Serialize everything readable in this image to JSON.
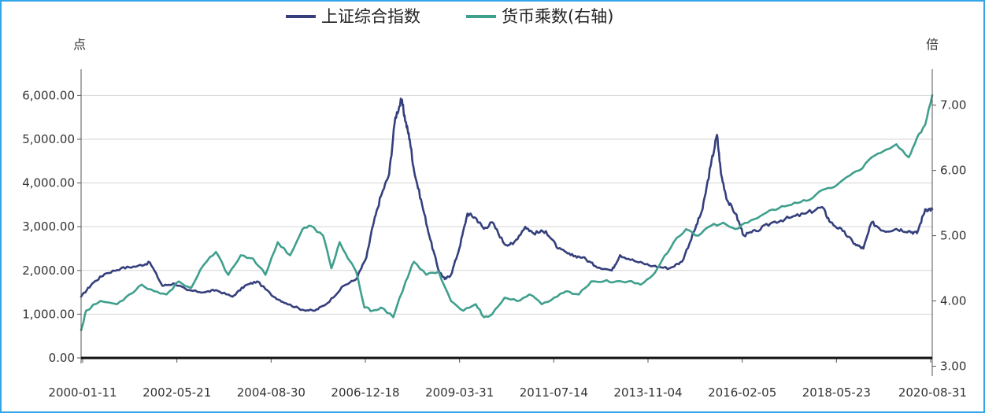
{
  "chart_data": {
    "type": "line",
    "title": "",
    "left_axis": {
      "unit_label": "点",
      "ylim": [
        0,
        6600
      ],
      "ticks": [
        "6,000.00",
        "5,000.00",
        "4,000.00",
        "3,000.00",
        "2,000.00",
        "1,000.00",
        "0.00"
      ],
      "tick_values": [
        6000,
        5000,
        4000,
        3000,
        2000,
        1000,
        0
      ]
    },
    "right_axis": {
      "unit_label": "倍",
      "ylim": [
        2.85,
        7.55
      ],
      "ticks": [
        "7.00",
        "6.00",
        "5.00",
        "4.00",
        "3.00"
      ],
      "tick_values": [
        7,
        6,
        5,
        4,
        3
      ]
    },
    "x_ticks": [
      "2000-01-11",
      "2002-05-21",
      "2004-08-30",
      "2006-12-18",
      "2009-03-31",
      "2011-07-14",
      "2013-11-04",
      "2016-02-05",
      "2018-05-23",
      "2020-08-31"
    ],
    "x_range": [
      2000.03,
      2020.67
    ],
    "legend": [
      {
        "name": "上证综合指数",
        "color": "#343f7c"
      },
      {
        "name": "货币乘数(右轴)",
        "color": "#3f9f8d"
      }
    ],
    "series": [
      {
        "name": "上证综合指数",
        "axis": "left",
        "color": "#343f7c",
        "x": [
          2000.03,
          2000.3,
          2000.6,
          2001.0,
          2001.4,
          2001.7,
          2002.0,
          2002.3,
          2002.6,
          2003.0,
          2003.3,
          2003.7,
          2004.0,
          2004.3,
          2004.7,
          2005.0,
          2005.4,
          2005.7,
          2006.0,
          2006.4,
          2006.7,
          2006.95,
          2007.1,
          2007.3,
          2007.5,
          2007.65,
          2007.8,
          2007.9,
          2008.0,
          2008.1,
          2008.3,
          2008.5,
          2008.7,
          2008.85,
          2009.0,
          2009.2,
          2009.4,
          2009.6,
          2009.8,
          2010.0,
          2010.3,
          2010.5,
          2010.8,
          2011.0,
          2011.3,
          2011.6,
          2011.9,
          2012.2,
          2012.5,
          2012.9,
          2013.1,
          2013.5,
          2013.9,
          2014.3,
          2014.6,
          2014.9,
          2015.1,
          2015.3,
          2015.45,
          2015.55,
          2015.7,
          2015.9,
          2016.1,
          2016.4,
          2016.8,
          2017.2,
          2017.6,
          2018.0,
          2018.2,
          2018.5,
          2018.8,
          2019.0,
          2019.2,
          2019.5,
          2019.8,
          2020.1,
          2020.3,
          2020.5,
          2020.67
        ],
        "values": [
          1400,
          1700,
          1920,
          2050,
          2100,
          2180,
          1650,
          1700,
          1550,
          1500,
          1550,
          1400,
          1650,
          1750,
          1400,
          1250,
          1100,
          1080,
          1250,
          1650,
          1800,
          2300,
          3000,
          3700,
          4200,
          5500,
          5900,
          5400,
          5000,
          4300,
          3500,
          2700,
          2000,
          1800,
          1900,
          2500,
          3300,
          3200,
          2950,
          3100,
          2600,
          2600,
          3000,
          2850,
          2900,
          2500,
          2350,
          2300,
          2100,
          2000,
          2350,
          2200,
          2100,
          2050,
          2200,
          2900,
          3400,
          4400,
          5100,
          4200,
          3600,
          3300,
          2800,
          2900,
          3100,
          3200,
          3300,
          3450,
          3100,
          2900,
          2600,
          2500,
          3100,
          2900,
          2950,
          2900,
          2850,
          3400,
          3400
        ]
      },
      {
        "name": "货币乘数(右轴)",
        "axis": "right",
        "color": "#3f9f8d",
        "x": [
          2000.03,
          2000.15,
          2000.5,
          2000.9,
          2001.2,
          2001.5,
          2001.8,
          2002.1,
          2002.4,
          2002.7,
          2003.0,
          2003.3,
          2003.6,
          2003.9,
          2004.2,
          2004.5,
          2004.8,
          2005.1,
          2005.4,
          2005.6,
          2005.9,
          2006.1,
          2006.3,
          2006.5,
          2006.7,
          2006.9,
          2007.1,
          2007.3,
          2007.6,
          2007.9,
          2008.1,
          2008.4,
          2008.7,
          2009.0,
          2009.3,
          2009.6,
          2009.8,
          2010.0,
          2010.3,
          2010.6,
          2010.9,
          2011.2,
          2011.5,
          2011.8,
          2012.1,
          2012.4,
          2012.7,
          2013.0,
          2013.3,
          2013.6,
          2013.9,
          2014.1,
          2014.4,
          2014.7,
          2015.0,
          2015.3,
          2015.6,
          2015.9,
          2016.2,
          2016.5,
          2016.8,
          2017.1,
          2017.4,
          2017.7,
          2018.0,
          2018.3,
          2018.6,
          2018.9,
          2019.2,
          2019.5,
          2019.8,
          2020.1,
          2020.3,
          2020.5,
          2020.67
        ],
        "values": [
          3.55,
          3.85,
          4.0,
          3.95,
          4.1,
          4.25,
          4.15,
          4.1,
          4.3,
          4.2,
          4.55,
          4.75,
          4.4,
          4.7,
          4.65,
          4.4,
          4.9,
          4.7,
          5.1,
          5.15,
          5.0,
          4.5,
          4.9,
          4.65,
          4.45,
          3.9,
          3.85,
          3.9,
          3.75,
          4.3,
          4.6,
          4.4,
          4.45,
          4.0,
          3.85,
          3.95,
          3.75,
          3.8,
          4.05,
          4.0,
          4.1,
          3.95,
          4.05,
          4.15,
          4.1,
          4.3,
          4.3,
          4.3,
          4.3,
          4.25,
          4.4,
          4.6,
          4.9,
          5.1,
          5.0,
          5.15,
          5.2,
          5.1,
          5.2,
          5.3,
          5.4,
          5.45,
          5.5,
          5.55,
          5.7,
          5.75,
          5.9,
          6.0,
          6.2,
          6.3,
          6.4,
          6.2,
          6.5,
          6.7,
          7.15
        ]
      }
    ]
  }
}
